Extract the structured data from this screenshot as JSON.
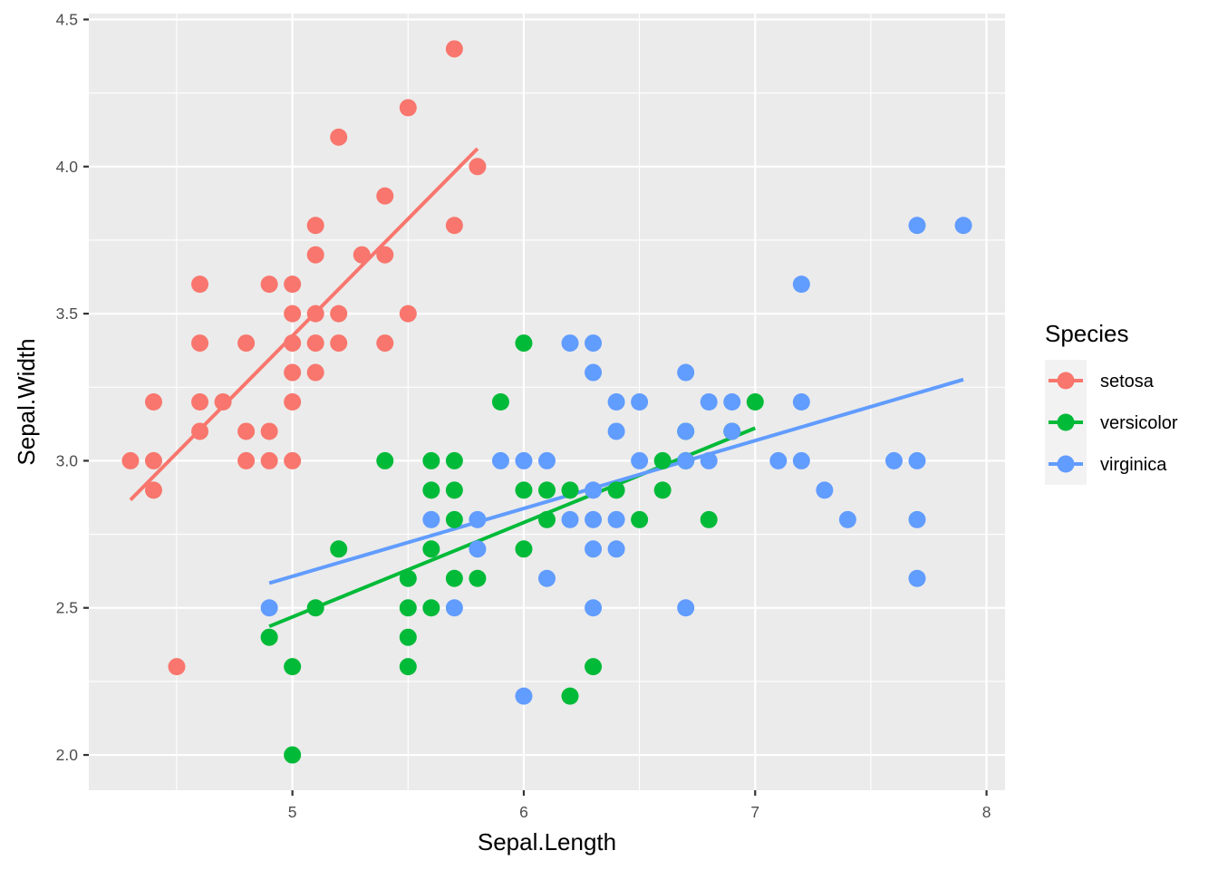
{
  "chart_data": {
    "type": "scatter",
    "xlabel": "Sepal.Length",
    "ylabel": "Sepal.Width",
    "xlim": [
      4.12,
      8.08
    ],
    "ylim": [
      1.88,
      4.52
    ],
    "x_ticks": [
      5,
      6,
      7,
      8
    ],
    "x_tick_labels": [
      "5",
      "6",
      "7",
      "8"
    ],
    "y_ticks": [
      2.0,
      2.5,
      3.0,
      3.5,
      4.0,
      4.5
    ],
    "y_tick_labels": [
      "2.0",
      "2.5",
      "3.0",
      "3.5",
      "4.0",
      "4.5"
    ],
    "grid": true,
    "legend": {
      "title": "Species",
      "position": "right"
    },
    "series": [
      {
        "name": "setosa",
        "color": "#F8766D",
        "points": [
          [
            4.3,
            3.0
          ],
          [
            4.4,
            3.2
          ],
          [
            4.4,
            3.0
          ],
          [
            4.4,
            2.9
          ],
          [
            4.5,
            2.3
          ],
          [
            4.6,
            3.6
          ],
          [
            4.6,
            3.4
          ],
          [
            4.6,
            3.2
          ],
          [
            4.6,
            3.1
          ],
          [
            4.7,
            3.2
          ],
          [
            4.8,
            3.4
          ],
          [
            4.8,
            3.1
          ],
          [
            4.8,
            3.0
          ],
          [
            4.9,
            3.6
          ],
          [
            4.9,
            3.1
          ],
          [
            4.9,
            3.0
          ],
          [
            5.0,
            3.6
          ],
          [
            5.0,
            3.5
          ],
          [
            5.0,
            3.4
          ],
          [
            5.0,
            3.3
          ],
          [
            5.0,
            3.2
          ],
          [
            5.0,
            3.0
          ],
          [
            5.1,
            3.8
          ],
          [
            5.1,
            3.7
          ],
          [
            5.1,
            3.5
          ],
          [
            5.1,
            3.4
          ],
          [
            5.1,
            3.3
          ],
          [
            5.2,
            4.1
          ],
          [
            5.2,
            3.5
          ],
          [
            5.2,
            3.4
          ],
          [
            5.3,
            3.7
          ],
          [
            5.4,
            3.9
          ],
          [
            5.4,
            3.7
          ],
          [
            5.4,
            3.4
          ],
          [
            5.5,
            4.2
          ],
          [
            5.5,
            3.5
          ],
          [
            5.7,
            4.4
          ],
          [
            5.7,
            3.8
          ],
          [
            5.8,
            4.0
          ]
        ],
        "fit": [
          [
            4.3,
            2.867
          ],
          [
            5.8,
            4.061
          ]
        ]
      },
      {
        "name": "versicolor",
        "color": "#00BA38",
        "points": [
          [
            4.9,
            2.4
          ],
          [
            5.0,
            2.3
          ],
          [
            5.0,
            2.0
          ],
          [
            5.1,
            2.5
          ],
          [
            5.2,
            2.7
          ],
          [
            5.4,
            3.0
          ],
          [
            5.5,
            2.6
          ],
          [
            5.5,
            2.5
          ],
          [
            5.5,
            2.4
          ],
          [
            5.5,
            2.3
          ],
          [
            5.6,
            3.0
          ],
          [
            5.6,
            2.9
          ],
          [
            5.6,
            2.7
          ],
          [
            5.6,
            2.5
          ],
          [
            5.7,
            3.0
          ],
          [
            5.7,
            2.9
          ],
          [
            5.7,
            2.8
          ],
          [
            5.7,
            2.6
          ],
          [
            5.8,
            2.6
          ],
          [
            5.9,
            3.2
          ],
          [
            6.0,
            3.4
          ],
          [
            6.0,
            2.9
          ],
          [
            6.0,
            2.7
          ],
          [
            6.1,
            2.9
          ],
          [
            6.1,
            2.8
          ],
          [
            6.2,
            2.9
          ],
          [
            6.2,
            2.2
          ],
          [
            6.3,
            2.3
          ],
          [
            6.4,
            2.9
          ],
          [
            6.5,
            2.8
          ],
          [
            6.6,
            3.0
          ],
          [
            6.6,
            2.9
          ],
          [
            6.7,
            3.1
          ],
          [
            6.7,
            3.0
          ],
          [
            6.8,
            2.8
          ],
          [
            6.9,
            3.1
          ],
          [
            7.0,
            3.2
          ]
        ],
        "fit": [
          [
            4.9,
            2.437
          ],
          [
            7.0,
            3.111
          ]
        ]
      },
      {
        "name": "virginica",
        "color": "#619CFF",
        "points": [
          [
            4.9,
            2.5
          ],
          [
            5.6,
            2.8
          ],
          [
            5.7,
            2.5
          ],
          [
            5.8,
            2.8
          ],
          [
            5.8,
            2.7
          ],
          [
            5.9,
            3.0
          ],
          [
            6.0,
            3.0
          ],
          [
            6.0,
            2.2
          ],
          [
            6.1,
            3.0
          ],
          [
            6.1,
            2.6
          ],
          [
            6.2,
            3.4
          ],
          [
            6.2,
            2.8
          ],
          [
            6.3,
            3.4
          ],
          [
            6.3,
            3.3
          ],
          [
            6.3,
            2.9
          ],
          [
            6.3,
            2.8
          ],
          [
            6.3,
            2.7
          ],
          [
            6.3,
            2.5
          ],
          [
            6.4,
            3.2
          ],
          [
            6.4,
            3.1
          ],
          [
            6.4,
            2.8
          ],
          [
            6.4,
            2.7
          ],
          [
            6.5,
            3.2
          ],
          [
            6.5,
            3.0
          ],
          [
            6.7,
            3.3
          ],
          [
            6.7,
            3.1
          ],
          [
            6.7,
            3.0
          ],
          [
            6.7,
            2.5
          ],
          [
            6.8,
            3.2
          ],
          [
            6.8,
            3.0
          ],
          [
            6.9,
            3.2
          ],
          [
            6.9,
            3.1
          ],
          [
            7.1,
            3.0
          ],
          [
            7.2,
            3.6
          ],
          [
            7.2,
            3.2
          ],
          [
            7.2,
            3.0
          ],
          [
            7.3,
            2.9
          ],
          [
            7.4,
            2.8
          ],
          [
            7.6,
            3.0
          ],
          [
            7.7,
            3.8
          ],
          [
            7.7,
            3.0
          ],
          [
            7.7,
            2.8
          ],
          [
            7.7,
            2.6
          ],
          [
            7.9,
            3.8
          ]
        ],
        "fit": [
          [
            4.9,
            2.584
          ],
          [
            7.9,
            3.276
          ]
        ]
      }
    ]
  }
}
